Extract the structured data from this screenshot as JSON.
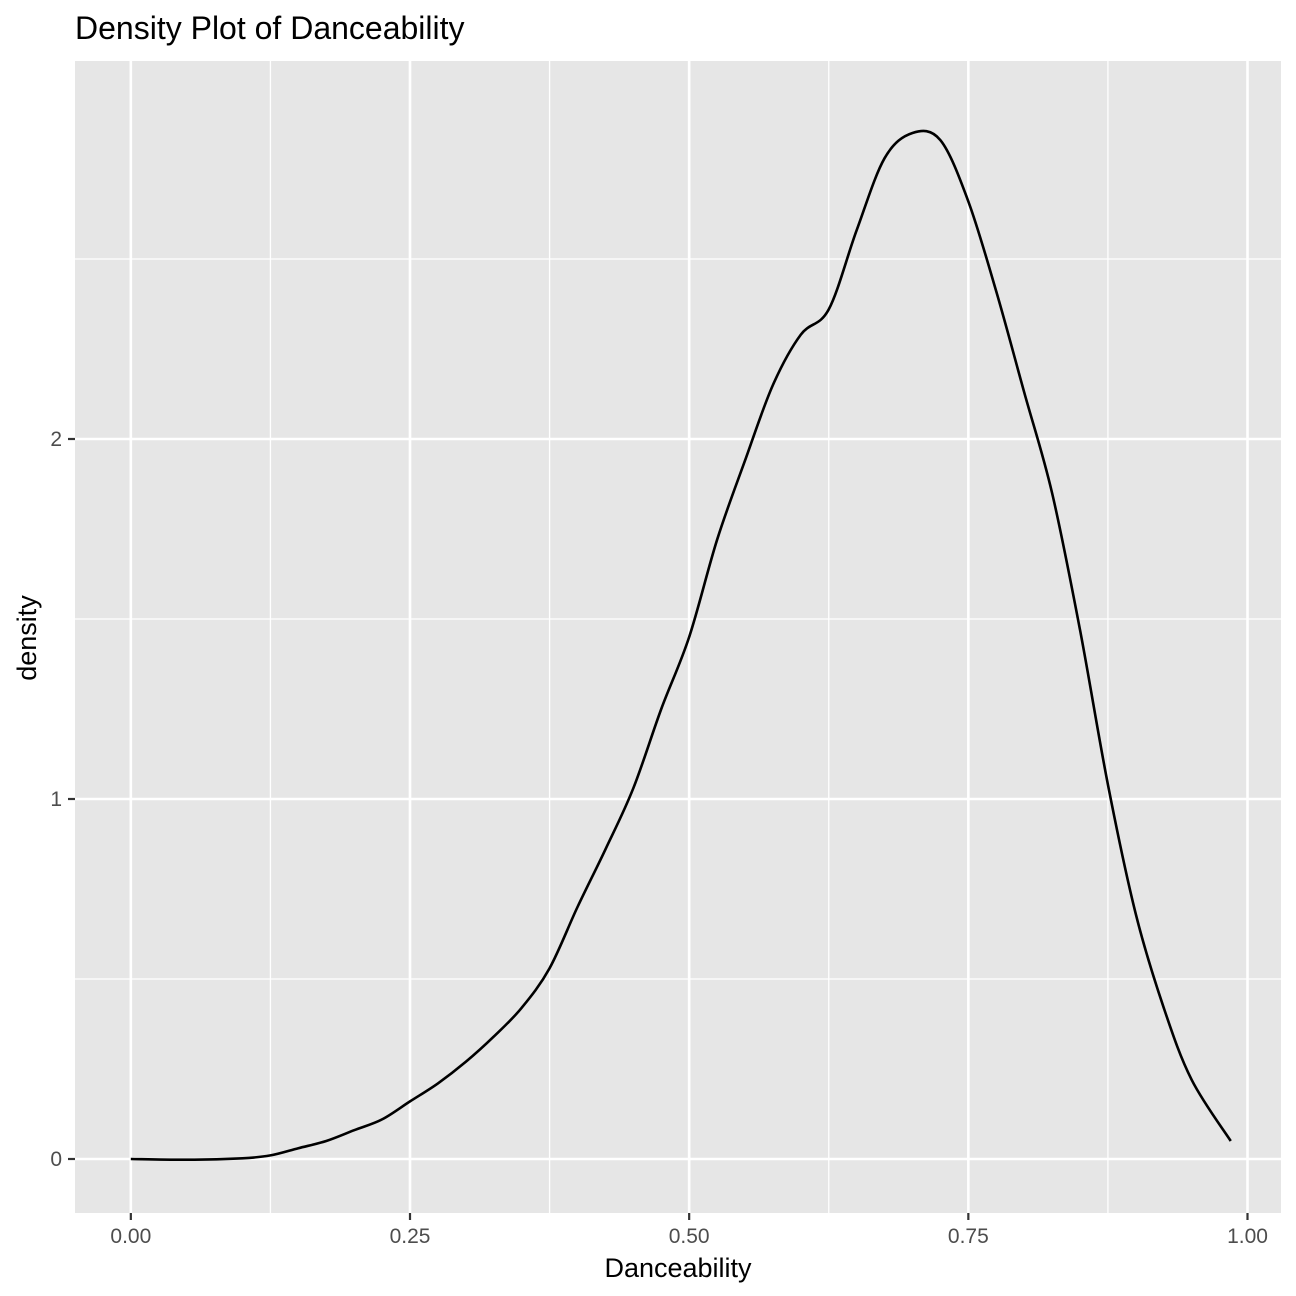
{
  "chart_data": {
    "type": "line",
    "title": "Density Plot of Danceability",
    "xlabel": "Danceability",
    "ylabel": "density",
    "xlim": [
      -0.05,
      1.03
    ],
    "ylim": [
      -0.15,
      3.05
    ],
    "x_ticks": [
      0,
      0.25,
      0.5,
      0.75,
      1
    ],
    "x_tick_labels": [
      "0.00",
      "0.25",
      "0.50",
      "0.75",
      "1.00"
    ],
    "y_ticks": [
      0,
      1,
      2
    ],
    "y_tick_labels": [
      "0",
      "1",
      "2"
    ],
    "grid": true,
    "colors": {
      "panel": "#e6e6e6",
      "grid": "#ffffff",
      "line": "#000000",
      "tick_text": "#4d4d4d"
    },
    "series": [
      {
        "x": [
          0,
          0.05,
          0.1,
          0.125,
          0.15,
          0.175,
          0.2,
          0.225,
          0.25,
          0.275,
          0.3,
          0.325,
          0.35,
          0.375,
          0.4,
          0.425,
          0.45,
          0.475,
          0.5,
          0.525,
          0.55,
          0.575,
          0.6,
          0.625,
          0.65,
          0.675,
          0.7,
          0.725,
          0.75,
          0.775,
          0.8,
          0.825,
          0.85,
          0.875,
          0.9,
          0.925,
          0.95,
          0.985
        ],
        "y": [
          0,
          -0.002,
          0.002,
          0.01,
          0.03,
          0.05,
          0.08,
          0.11,
          0.16,
          0.21,
          0.27,
          0.34,
          0.42,
          0.53,
          0.7,
          0.86,
          1.03,
          1.25,
          1.45,
          1.72,
          1.94,
          2.15,
          2.29,
          2.36,
          2.58,
          2.78,
          2.85,
          2.83,
          2.66,
          2.41,
          2.13,
          1.85,
          1.47,
          1.04,
          0.68,
          0.42,
          0.22,
          0.05
        ]
      }
    ]
  }
}
